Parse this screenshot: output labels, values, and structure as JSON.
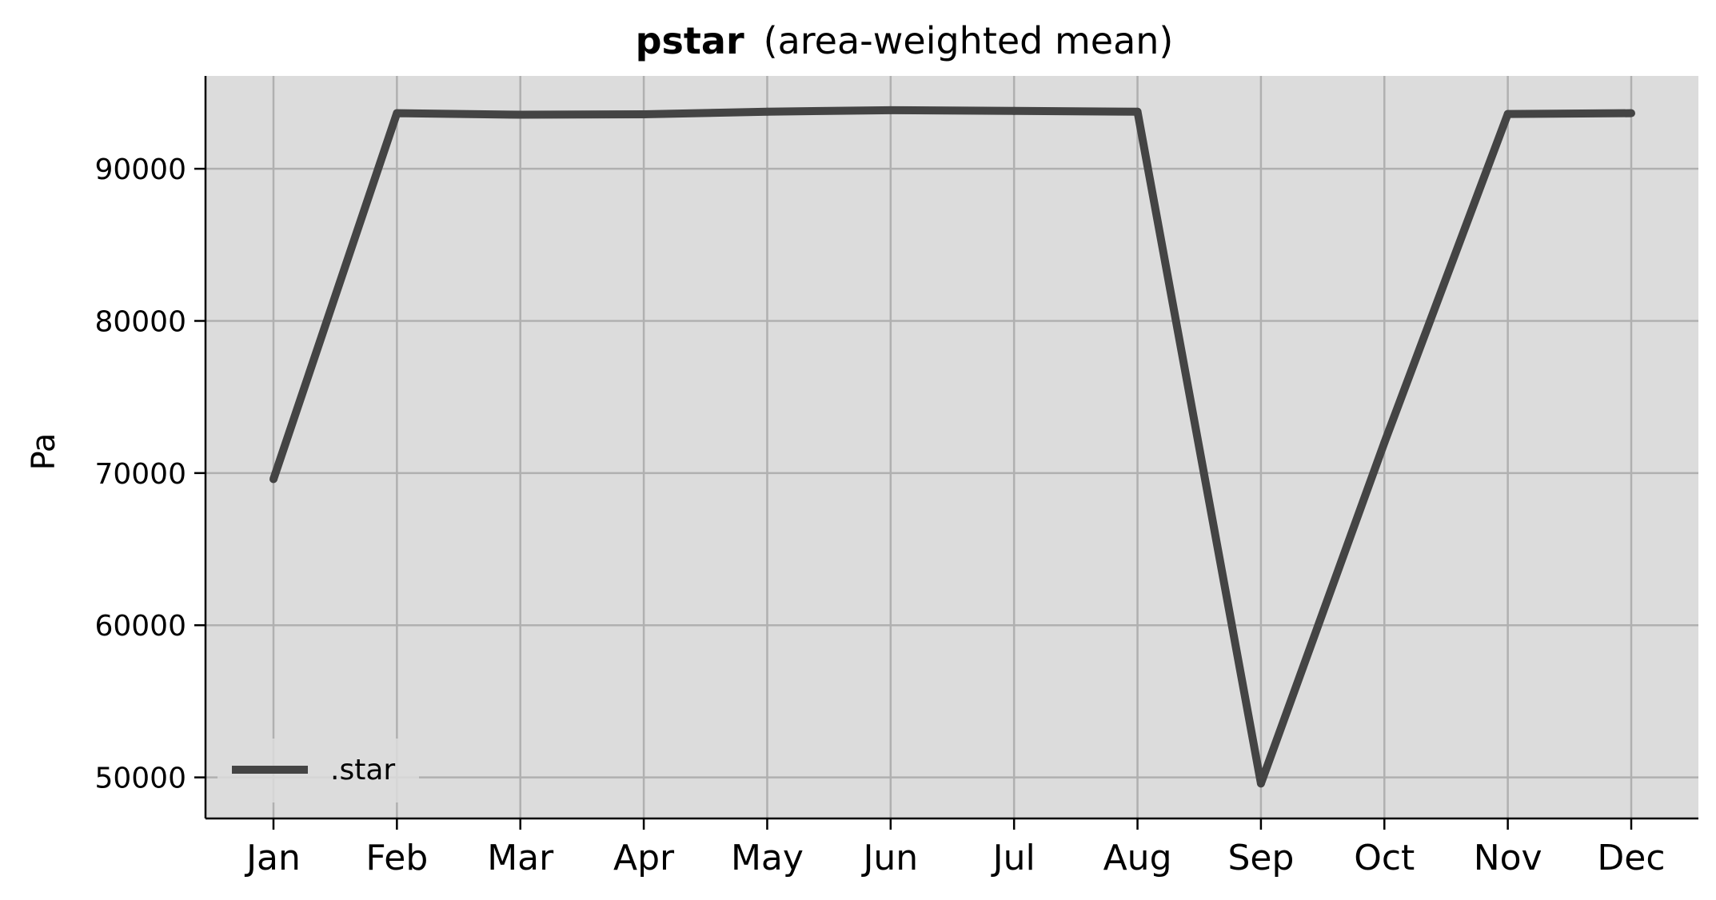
{
  "chart_data": {
    "type": "line",
    "title_bold": "pstar",
    "title_rest": "(area-weighted mean)",
    "xlabel": "",
    "ylabel": "Pa",
    "categories": [
      "Jan",
      "Feb",
      "Mar",
      "Apr",
      "May",
      "Jun",
      "Jul",
      "Aug",
      "Sep",
      "Oct",
      "Nov",
      "Dec"
    ],
    "yticks": [
      "50000",
      "60000",
      "70000",
      "80000",
      "90000"
    ],
    "ylim": [
      47300,
      96100
    ],
    "grid": true,
    "legend_position": "lower-left",
    "series": [
      {
        "name": ".star",
        "color": "#444444",
        "values": [
          69600,
          93650,
          93550,
          93580,
          93750,
          93850,
          93800,
          93750,
          49600,
          72000,
          93600,
          93650
        ]
      }
    ],
    "colors": {
      "plot_background": "#dcdcdc",
      "grid": "#b0b0b0",
      "line": "#444444"
    }
  }
}
